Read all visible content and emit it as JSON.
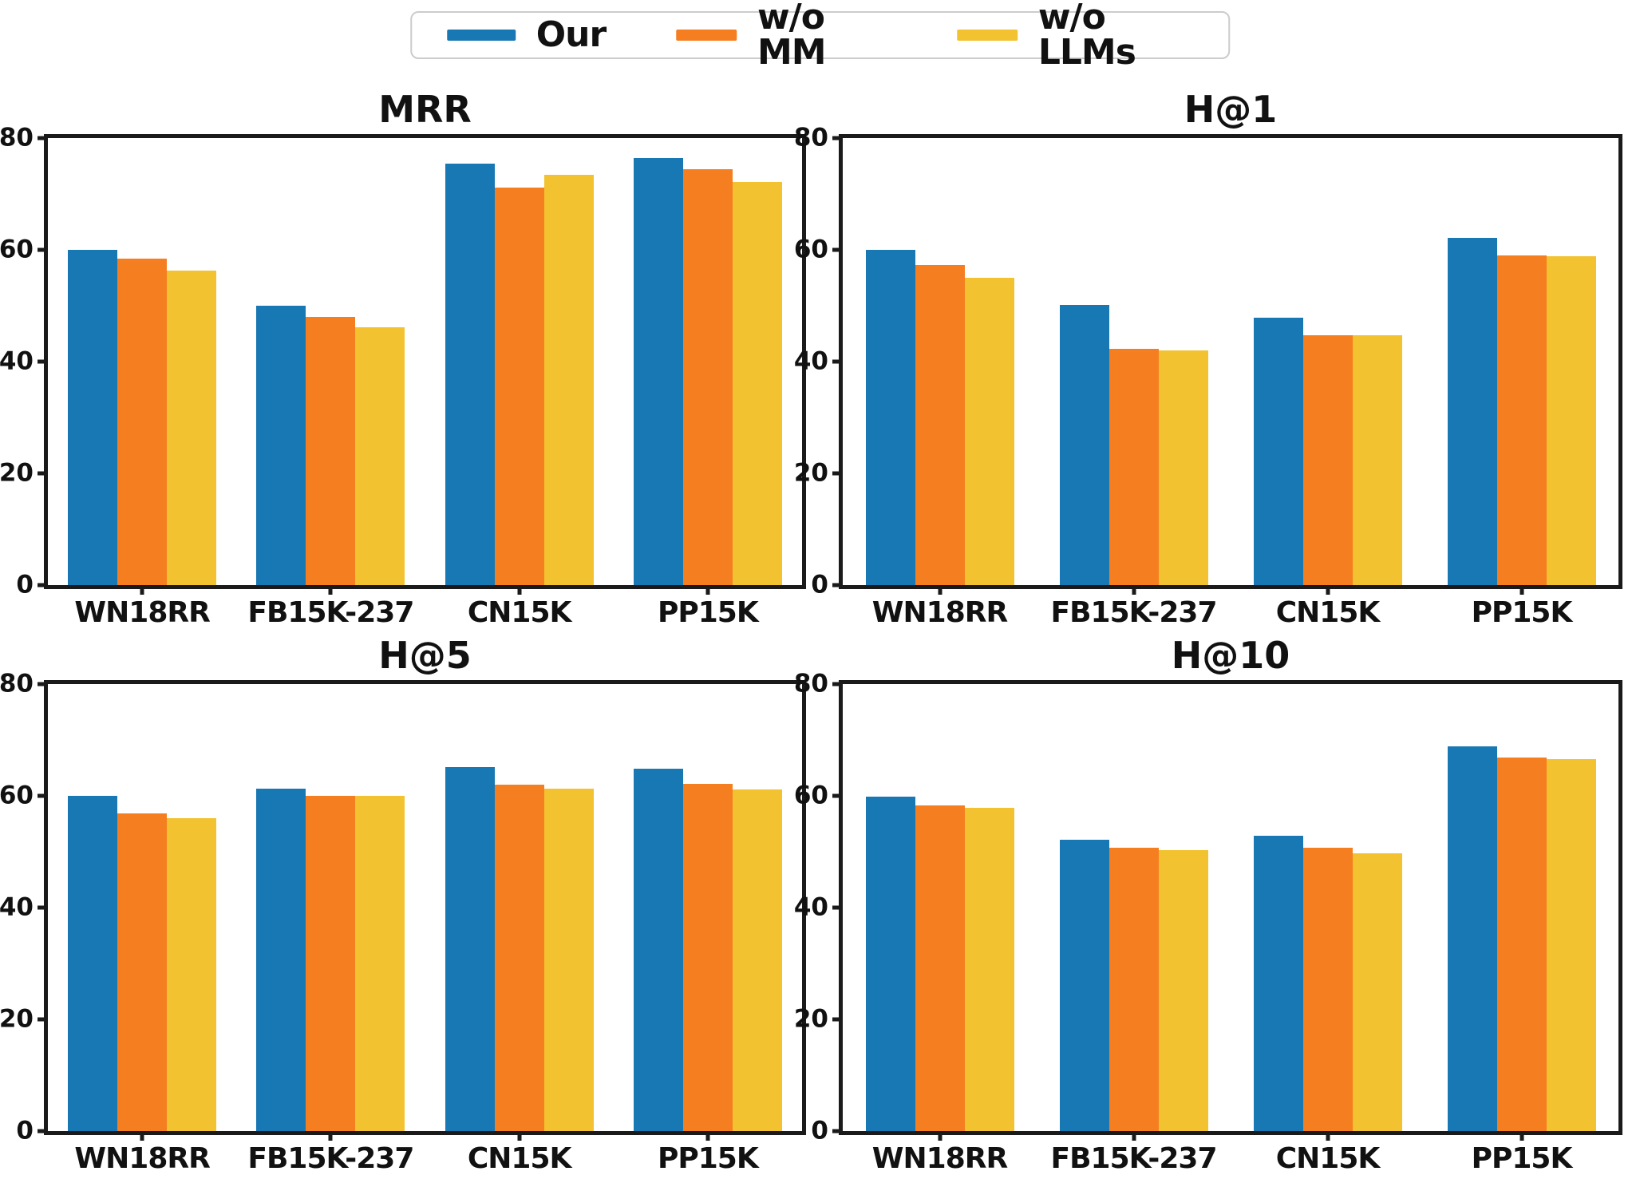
{
  "figure": {
    "background": "#ffffff",
    "text_color": "#111111",
    "spine_color": "#1a1a1a"
  },
  "legend": {
    "position": "top-center",
    "items": [
      {
        "label": "Our",
        "color": "#1878B4"
      },
      {
        "label": "w/o MM",
        "color": "#F57E20"
      },
      {
        "label": "w/o LLMs",
        "color": "#F2C230"
      }
    ]
  },
  "chart_data": [
    {
      "type": "bar",
      "title": "MRR",
      "categories": [
        "WN18RR",
        "FB15K-237",
        "CN15K",
        "PP15K"
      ],
      "series": [
        {
          "name": "Our",
          "values": [
            60.0,
            50.0,
            75.4,
            76.4
          ]
        },
        {
          "name": "w/o MM",
          "values": [
            58.5,
            48.0,
            71.2,
            74.5
          ]
        },
        {
          "name": "w/o LLMs",
          "values": [
            56.3,
            46.1,
            73.4,
            72.2
          ]
        }
      ],
      "ylim": [
        0,
        80
      ],
      "yticks": [
        0,
        20,
        40,
        60,
        80
      ],
      "grid": false,
      "legend_position": "figure-top"
    },
    {
      "type": "bar",
      "title": "H@1",
      "categories": [
        "WN18RR",
        "FB15K-237",
        "CN15K",
        "PP15K"
      ],
      "series": [
        {
          "name": "Our",
          "values": [
            60.0,
            50.2,
            47.8,
            62.2
          ]
        },
        {
          "name": "w/o MM",
          "values": [
            57.3,
            42.3,
            44.7,
            59.0
          ]
        },
        {
          "name": "w/o LLMs",
          "values": [
            55.0,
            42.0,
            44.7,
            58.8
          ]
        }
      ],
      "ylim": [
        0,
        80
      ],
      "yticks": [
        0,
        20,
        40,
        60,
        80
      ],
      "grid": false,
      "legend_position": "figure-top"
    },
    {
      "type": "bar",
      "title": "H@5",
      "categories": [
        "WN18RR",
        "FB15K-237",
        "CN15K",
        "PP15K"
      ],
      "series": [
        {
          "name": "Our",
          "values": [
            60.0,
            61.3,
            65.2,
            64.8
          ]
        },
        {
          "name": "w/o MM",
          "values": [
            56.9,
            60.0,
            62.0,
            62.1
          ]
        },
        {
          "name": "w/o LLMs",
          "values": [
            56.0,
            60.0,
            61.3,
            61.1
          ]
        }
      ],
      "ylim": [
        0,
        80
      ],
      "yticks": [
        0,
        20,
        40,
        60,
        80
      ],
      "grid": false,
      "legend_position": "figure-top"
    },
    {
      "type": "bar",
      "title": "H@10",
      "categories": [
        "WN18RR",
        "FB15K-237",
        "CN15K",
        "PP15K"
      ],
      "series": [
        {
          "name": "Our",
          "values": [
            59.8,
            52.2,
            52.9,
            68.9
          ]
        },
        {
          "name": "w/o MM",
          "values": [
            58.3,
            50.7,
            50.7,
            66.9
          ]
        },
        {
          "name": "w/o LLMs",
          "values": [
            57.8,
            50.3,
            49.7,
            66.6
          ]
        }
      ],
      "ylim": [
        0,
        80
      ],
      "yticks": [
        0,
        20,
        40,
        60,
        80
      ],
      "grid": false,
      "legend_position": "figure-top"
    }
  ]
}
